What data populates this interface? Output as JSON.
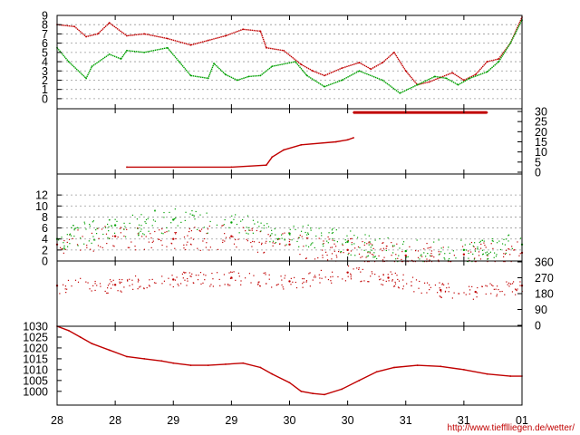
{
  "credit": "http://www.tiefflliegen.de/wetter/",
  "x_axis": {
    "tick_labels": [
      "28",
      "28",
      "29",
      "29",
      "30",
      "30",
      "31",
      "31",
      "01"
    ],
    "range_days": [
      0,
      4
    ]
  },
  "colors": {
    "red": "#c00000",
    "green": "#00a000",
    "grid": "#999999"
  },
  "chart_data": [
    {
      "type": "line",
      "title": "",
      "axis_side": "left",
      "ylim": [
        -0.5,
        9
      ],
      "y_ticks": [
        0,
        1,
        2,
        3,
        4,
        5,
        6,
        7,
        8,
        9
      ],
      "grid": true,
      "series": [
        {
          "color": "red",
          "x": [
            0,
            0.15,
            0.25,
            0.35,
            0.45,
            0.6,
            0.75,
            0.95,
            1.15,
            1.3,
            1.45,
            1.6,
            1.75,
            1.8,
            1.95,
            2.1,
            2.2,
            2.3,
            2.45,
            2.6,
            2.7,
            2.8,
            2.9,
            3.0,
            3.1,
            3.2,
            3.3,
            3.4,
            3.5,
            3.6,
            3.7,
            3.8,
            3.9,
            4.0
          ],
          "y": [
            8.0,
            7.8,
            6.7,
            7.0,
            8.2,
            6.8,
            7.0,
            6.5,
            5.8,
            6.3,
            6.8,
            7.5,
            7.3,
            5.5,
            5.2,
            3.7,
            3.0,
            2.5,
            3.3,
            3.9,
            3.2,
            3.9,
            5.0,
            3.0,
            1.5,
            1.8,
            2.3,
            2.8,
            2.0,
            2.6,
            4.0,
            4.3,
            6.0,
            8.8
          ]
        },
        {
          "color": "green",
          "x": [
            0,
            0.1,
            0.25,
            0.3,
            0.45,
            0.55,
            0.6,
            0.75,
            0.95,
            1.05,
            1.15,
            1.3,
            1.35,
            1.45,
            1.55,
            1.65,
            1.75,
            1.85,
            2.05,
            2.15,
            2.3,
            2.45,
            2.6,
            2.8,
            2.95,
            3.1,
            3.25,
            3.35,
            3.45,
            3.55,
            3.7,
            3.8,
            3.9,
            4.0
          ],
          "y": [
            5.5,
            4.0,
            2.2,
            3.5,
            4.8,
            4.3,
            5.2,
            5.0,
            5.5,
            4.0,
            2.5,
            2.2,
            3.8,
            2.6,
            2.0,
            2.4,
            2.5,
            3.5,
            4.0,
            2.5,
            1.3,
            2.0,
            3.0,
            2.0,
            0.6,
            1.5,
            2.4,
            2.2,
            1.5,
            2.2,
            2.9,
            4.0,
            6.0,
            8.5
          ]
        }
      ]
    },
    {
      "type": "line",
      "title": "",
      "axis_side": "right",
      "ylim": [
        0,
        30
      ],
      "y_ticks": [
        0,
        5,
        10,
        15,
        20,
        25,
        30
      ],
      "grid": false,
      "series": [
        {
          "color": "red",
          "x": [
            0.6,
            1.5,
            1.8,
            1.85,
            1.95,
            2.1,
            2.4,
            2.5,
            2.55
          ],
          "y": [
            2.5,
            2.5,
            3.5,
            7.5,
            11.0,
            13.5,
            15.0,
            16.0,
            17.0
          ]
        },
        {
          "color": "red",
          "x": [
            2.55,
            3.7
          ],
          "y": [
            29.5,
            29.5
          ]
        }
      ]
    },
    {
      "type": "scatter",
      "title": "",
      "axis_side": "left",
      "ylim": [
        0,
        14
      ],
      "y_ticks": [
        0,
        2,
        4,
        6,
        8,
        10,
        12
      ],
      "grid": true,
      "series": [
        {
          "color": "red",
          "x": [
            0,
            0.5,
            1.0,
            1.5,
            2.0,
            2.5,
            3.0,
            3.5,
            4.0
          ],
          "y": [
            3.0,
            4.5,
            4.0,
            4.5,
            3.0,
            2.0,
            1.0,
            1.2,
            1.5
          ]
        },
        {
          "color": "green",
          "x": [
            0,
            0.5,
            1.0,
            1.5,
            2.0,
            2.5,
            3.0,
            3.5,
            4.0
          ],
          "y": [
            4.0,
            6.5,
            7.5,
            7.0,
            5.0,
            3.5,
            1.8,
            2.0,
            3.0
          ]
        }
      ]
    },
    {
      "type": "scatter",
      "title": "",
      "axis_side": "right",
      "ylim": [
        0,
        360
      ],
      "y_ticks": [
        0,
        90,
        180,
        270,
        360
      ],
      "grid": false,
      "series": [
        {
          "color": "red",
          "x": [
            0,
            0.5,
            1.0,
            1.5,
            2.0,
            2.5,
            2.85,
            3.3,
            3.6,
            4.0
          ],
          "y": [
            225,
            230,
            260,
            270,
            250,
            300,
            270,
            200,
            190,
            225
          ]
        }
      ]
    },
    {
      "type": "line",
      "title": "",
      "axis_side": "left",
      "ylim": [
        997,
        1030
      ],
      "y_ticks": [
        1000,
        1005,
        1010,
        1015,
        1020,
        1025,
        1030
      ],
      "grid": false,
      "series": [
        {
          "color": "red",
          "x": [
            0,
            0.1,
            0.2,
            0.3,
            0.45,
            0.6,
            0.75,
            0.9,
            1.0,
            1.15,
            1.3,
            1.45,
            1.6,
            1.75,
            1.85,
            2.0,
            2.1,
            2.2,
            2.3,
            2.45,
            2.6,
            2.75,
            2.9,
            3.1,
            3.3,
            3.5,
            3.7,
            3.9,
            4.0
          ],
          "y": [
            1030,
            1028,
            1025,
            1022,
            1019,
            1016,
            1015,
            1014,
            1013,
            1012,
            1012,
            1012.5,
            1013,
            1011,
            1008,
            1004,
            1000,
            999,
            998.5,
            1001,
            1005,
            1009,
            1011,
            1012,
            1011.5,
            1010,
            1008,
            1007,
            1007
          ]
        }
      ]
    }
  ]
}
